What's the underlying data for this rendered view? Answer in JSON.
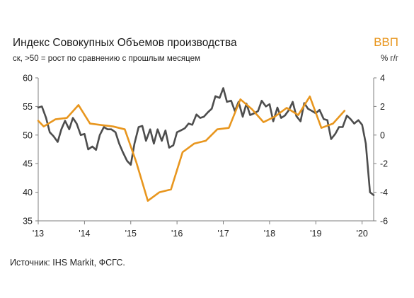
{
  "chart_data": {
    "type": "line",
    "title": "Индекс Совокупных Объемов производства",
    "subtitle": "ск, >50 = рост по сравнению с прошлым месяцем",
    "right_axis_title": "ВВП",
    "right_axis_unit": "% г/г",
    "x_tick_labels": [
      "'13",
      "'14",
      "'15",
      "'16",
      "'17",
      "'18",
      "'19",
      "'20"
    ],
    "x_tick_years": [
      2013,
      2014,
      2015,
      2016,
      2017,
      2018,
      2019,
      2020
    ],
    "xlim": [
      2013.0,
      2020.25
    ],
    "left_axis": {
      "ylim": [
        35,
        60
      ],
      "ticks": [
        60,
        55,
        50,
        45,
        40,
        35
      ]
    },
    "right_axis": {
      "ylim": [
        -6,
        4
      ],
      "ticks": [
        4,
        2,
        0,
        -2,
        -4,
        -6
      ]
    },
    "colors": {
      "composite_output": "#4d4d4d",
      "gdp": "#e8961e"
    },
    "series": [
      {
        "axis": "left",
        "x": [
          2013.0,
          2013.08,
          2013.17,
          2013.25,
          2013.33,
          2013.42,
          2013.5,
          2013.58,
          2013.67,
          2013.75,
          2013.83,
          2013.92,
          2014.0,
          2014.08,
          2014.17,
          2014.25,
          2014.33,
          2014.42,
          2014.5,
          2014.58,
          2014.67,
          2014.75,
          2014.83,
          2014.92,
          2015.0,
          2015.08,
          2015.17,
          2015.25,
          2015.33,
          2015.42,
          2015.5,
          2015.58,
          2015.67,
          2015.75,
          2015.83,
          2015.92,
          2016.0,
          2016.08,
          2016.17,
          2016.25,
          2016.33,
          2016.42,
          2016.5,
          2016.58,
          2016.67,
          2016.75,
          2016.83,
          2016.92,
          2017.0,
          2017.08,
          2017.17,
          2017.25,
          2017.33,
          2017.42,
          2017.5,
          2017.58,
          2017.67,
          2017.75,
          2017.83,
          2017.92,
          2018.0,
          2018.08,
          2018.17,
          2018.25,
          2018.33,
          2018.42,
          2018.5,
          2018.58,
          2018.67,
          2018.75,
          2018.83,
          2018.92,
          2019.0,
          2019.08,
          2019.17,
          2019.25,
          2019.33,
          2019.42,
          2019.5,
          2019.58,
          2019.67,
          2019.75,
          2019.83,
          2019.92,
          2020.0,
          2020.08,
          2020.17,
          2020.25
        ],
        "values": [
          54.8,
          55.0,
          53.0,
          50.5,
          49.8,
          48.8,
          51.0,
          52.5,
          51.0,
          53.0,
          52.0,
          50.0,
          50.2,
          47.5,
          48.0,
          47.4,
          50.0,
          51.4,
          51.0,
          51.0,
          50.5,
          48.5,
          47.0,
          45.5,
          44.8,
          48.5,
          51.4,
          51.6,
          49.0,
          51.0,
          48.5,
          51.0,
          49.0,
          50.8,
          47.8,
          48.2,
          50.5,
          50.8,
          51.2,
          52.0,
          51.8,
          53.6,
          53.0,
          53.2,
          54.0,
          54.6,
          56.8,
          56.5,
          58.2,
          55.8,
          56.0,
          54.2,
          55.8,
          53.2,
          55.5,
          53.5,
          53.8,
          54.2,
          56.0,
          55.0,
          55.4,
          52.4,
          54.8,
          53.0,
          53.4,
          54.4,
          55.8,
          53.3,
          52.4,
          55.6,
          54.6,
          54.2,
          53.8,
          54.4,
          52.8,
          52.6,
          49.3,
          50.2,
          51.4,
          51.4,
          53.4,
          52.8,
          52.0,
          52.6,
          51.8,
          48.5,
          40.0,
          39.5
        ]
      },
      {
        "axis": "right",
        "x": [
          2013.0,
          2013.12,
          2013.37,
          2013.62,
          2013.87,
          2014.12,
          2014.37,
          2014.62,
          2014.87,
          2015.12,
          2015.37,
          2015.62,
          2015.87,
          2016.12,
          2016.37,
          2016.62,
          2016.87,
          2017.12,
          2017.37,
          2017.62,
          2017.87,
          2018.12,
          2018.37,
          2018.62,
          2018.87,
          2019.12,
          2019.37,
          2019.62
        ],
        "values": [
          1.0,
          0.6,
          1.1,
          1.2,
          2.1,
          0.8,
          0.7,
          0.6,
          0.4,
          -1.9,
          -4.6,
          -4.0,
          -3.8,
          -1.2,
          -0.6,
          -0.4,
          0.4,
          0.5,
          2.5,
          1.8,
          0.9,
          1.3,
          1.9,
          1.4,
          2.7,
          0.5,
          0.8,
          1.7
        ]
      }
    ]
  },
  "source": "Источник: IHS Markit, ФСГС."
}
